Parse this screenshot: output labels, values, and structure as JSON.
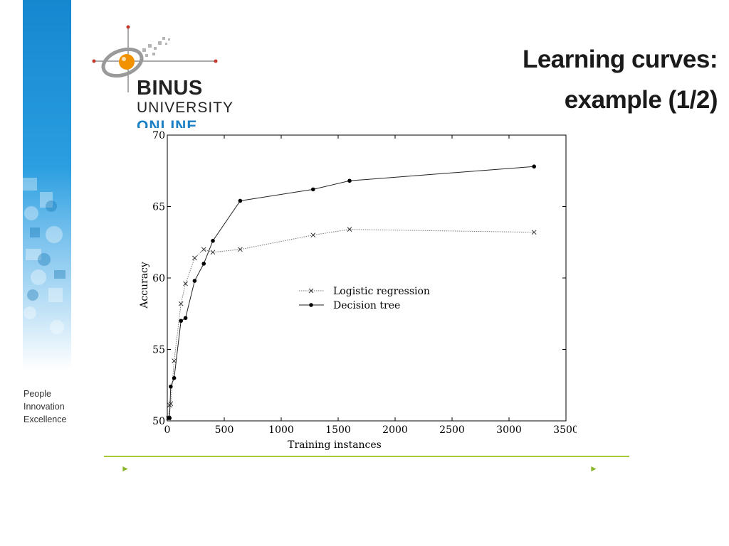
{
  "slide": {
    "title_line1": "Learning curves:",
    "title_line2": "example (1/2)"
  },
  "logo": {
    "name": "BINUS",
    "subtitle": "UNIVERSITY",
    "tagline_word": "ONLINE"
  },
  "tagline": {
    "line1": "People",
    "line2": "Innovation",
    "line3": "Excellence"
  },
  "footer": {
    "arrow_left": "►",
    "arrow_right": "►"
  },
  "colors": {
    "brand_blue": "#1b80c4",
    "accent_green": "#a6c93a",
    "logo_orange": "#f39200"
  },
  "chart_data": {
    "type": "line",
    "xlabel": "Training instances",
    "ylabel": "Accuracy",
    "xlim": [
      0,
      3500
    ],
    "ylim": [
      50,
      70
    ],
    "xticks": [
      0,
      500,
      1000,
      1500,
      2000,
      2500,
      3000,
      3500
    ],
    "yticks": [
      50,
      55,
      60,
      65,
      70
    ],
    "grid": false,
    "legend": "center",
    "series": [
      {
        "name": "Logistic regression",
        "marker": "x",
        "line": "dotted",
        "x": [
          10,
          20,
          30,
          60,
          120,
          160,
          240,
          320,
          400,
          640,
          1280,
          1600,
          3220
        ],
        "y": [
          50.2,
          51.1,
          51.2,
          54.2,
          58.2,
          59.6,
          61.4,
          62.0,
          61.8,
          62.0,
          63.0,
          63.4,
          63.2
        ]
      },
      {
        "name": "Decision tree",
        "marker": "o",
        "line": "solid",
        "x": [
          10,
          20,
          30,
          60,
          120,
          160,
          240,
          320,
          400,
          640,
          1280,
          1600,
          3220
        ],
        "y": [
          50.2,
          50.2,
          52.4,
          53.0,
          57.0,
          57.2,
          59.8,
          61.0,
          62.6,
          65.4,
          66.2,
          66.8,
          67.8
        ]
      }
    ]
  }
}
